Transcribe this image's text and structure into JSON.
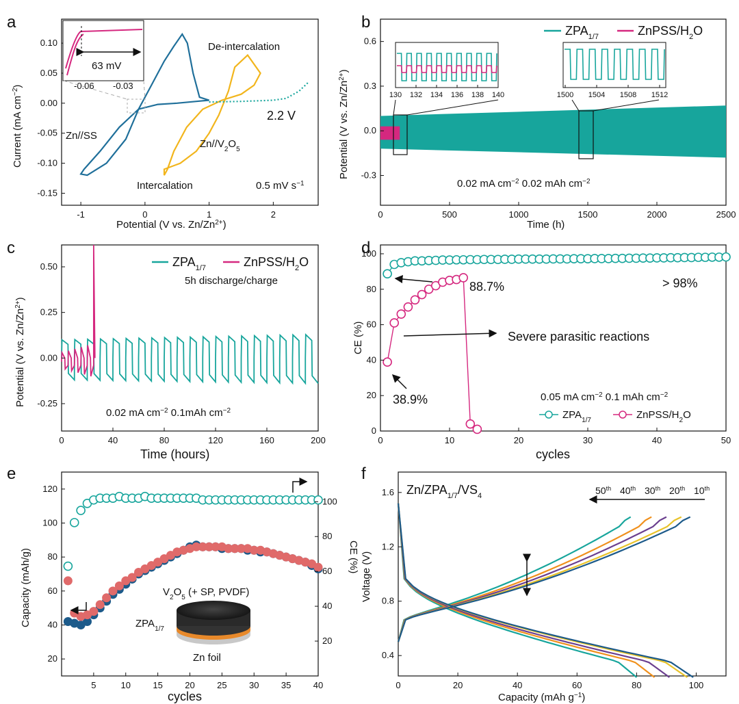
{
  "colors": {
    "teal": "#17a59c",
    "magenta": "#d5287f",
    "blue": "#1f6f9a",
    "gold": "#f2b51c",
    "salmon": "#e06a6a",
    "navy": "#1c5a8a",
    "orange": "#f0901c",
    "purple": "#6b3f8f",
    "yellow": "#e8c32a"
  },
  "panels": {
    "a": {
      "letter": "a",
      "xlabel": "Potential (V vs. Zn/Zn",
      "xlabel_sup": "2+",
      "xlabel_end": ")",
      "ylabel": "Current (mA cm",
      "ylabel_sup": "−2",
      "ylabel_end": ")",
      "xticks": [
        "-1",
        "0",
        "1",
        "2"
      ],
      "yticks": [
        "0.10",
        "0.05",
        "0.00",
        "-0.05",
        "-0.10",
        "-0.15"
      ],
      "labels": {
        "deint": "De-intercalation",
        "int": "Intercalation",
        "znss": "Zn//SS",
        "znv": "Zn//V",
        "znv_sub1": "2",
        "znv_mid": "O",
        "znv_sub2": "5",
        "v22": "2.2 V",
        "rate": "0.5 mV s",
        "rate_sup": "−1",
        "inset_mv": "63 mV",
        "inset_t1": "-0.06",
        "inset_t2": "-0.03"
      }
    },
    "b": {
      "letter": "b",
      "xlabel": "Time (h)",
      "ylabel": "Potential (V vs. Zn/Zn",
      "ylabel_sup": "2+",
      "ylabel_end": ")",
      "xticks": [
        "0",
        "500",
        "1000",
        "1500",
        "2000",
        "2500"
      ],
      "yticks": [
        "0.6",
        "0.3",
        "0.0",
        "-0.3"
      ],
      "legend": {
        "s1": "ZPA",
        "s1_sub": "1/7",
        "s2": "ZnPSS/H",
        "s2_sub": "2",
        "s2_end": "O"
      },
      "cond": "0.02 mA cm",
      "cond_sup1": "−2",
      "cond_mid": " 0.02 mAh cm",
      "cond_sup2": "−2",
      "inset1_ticks": [
        "130",
        "132",
        "134",
        "136",
        "138",
        "140"
      ],
      "inset2_ticks": [
        "1500",
        "1504",
        "1508",
        "1512"
      ]
    },
    "c": {
      "letter": "c",
      "xlabel": "Time (hours)",
      "ylabel": "Potential (V vs. Zn/Zn",
      "ylabel_sup": "2+",
      "ylabel_end": ")",
      "xticks": [
        "0",
        "40",
        "80",
        "120",
        "160",
        "200"
      ],
      "yticks": [
        "0.50",
        "0.25",
        "0.00",
        "-0.25"
      ],
      "legend": {
        "s1": "ZPA",
        "s1_sub": "1/7",
        "s2": "ZnPSS/H",
        "s2_sub": "2",
        "s2_end": "O",
        "note": "5h discharge/charge"
      },
      "cond": "0.02 mA cm",
      "cond_sup1": "−2",
      "cond_mid": "  0.1mAh cm",
      "cond_sup2": "−2"
    },
    "d": {
      "letter": "d",
      "xlabel": "cycles",
      "ylabel": "CE (%)",
      "xticks": [
        "0",
        "10",
        "20",
        "30",
        "40",
        "50"
      ],
      "yticks": [
        "100",
        "80",
        "60",
        "40",
        "20",
        "0"
      ],
      "ann1": "88.7%",
      "ann2": "> 98%",
      "ann3": "Severe parasitic reactions",
      "ann4": "38.9%",
      "cond": "0.05 mA cm",
      "cond_sup1": "−2",
      "cond_mid": " 0.1 mAh cm",
      "cond_sup2": "−2",
      "legend": {
        "s1": "ZPA",
        "s1_sub": "1/7",
        "s2": "ZnPSS/H",
        "s2_sub": "2",
        "s2_end": "O"
      }
    },
    "e": {
      "letter": "e",
      "xlabel": "cycles",
      "ylabel": "Capacity (mAh/g)",
      "y2label": "CE (%)",
      "xticks": [
        "5",
        "10",
        "15",
        "20",
        "25",
        "30",
        "35",
        "40"
      ],
      "yticks": [
        "120",
        "100",
        "80",
        "60",
        "40",
        "20"
      ],
      "y2ticks": [
        "100",
        "80",
        "60",
        "40",
        "20"
      ],
      "label_v": "V",
      "label_v_sub1": "2",
      "label_v_mid": "O",
      "label_v_sub2": "5",
      "label_v_end": " (+ SP, PVDF)",
      "label_zpa": "ZPA",
      "label_zpa_sub": "1/7",
      "label_zn": "Zn foil"
    },
    "f": {
      "letter": "f",
      "xlabel": "Capacity (mAh g",
      "xlabel_sup": "−1",
      "xlabel_end": ")",
      "ylabel": "Voltage (V)",
      "xticks": [
        "0",
        "20",
        "40",
        "60",
        "80",
        "100"
      ],
      "yticks": [
        "1.6",
        "1.2",
        "0.8",
        "0.4"
      ],
      "title": "Zn/ZPA",
      "title_sub": "1/7",
      "title_end": "/VS",
      "title_sub2": "4",
      "cycles": [
        {
          "n": "50",
          "s": "th"
        },
        {
          "n": "40",
          "s": "th"
        },
        {
          "n": "30",
          "s": "th"
        },
        {
          "n": "20",
          "s": "th"
        },
        {
          "n": "10",
          "s": "th"
        }
      ]
    }
  },
  "chart_data": [
    {
      "panel": "a",
      "type": "line",
      "xlabel": "Potential (V vs. Zn/Zn2+)",
      "ylabel": "Current (mA cm-2)",
      "xlim": [
        -1.3,
        2.7
      ],
      "ylim": [
        -0.17,
        0.14
      ],
      "series": [
        {
          "name": "Zn//SS",
          "color": "#1f6f9a",
          "x": [
            -0.9,
            -0.6,
            -0.3,
            -0.1,
            0.1,
            0.3,
            0.45,
            0.58,
            0.66,
            0.75,
            0.85,
            1.0,
            0.8,
            0.5,
            0.2,
            -0.1,
            -0.4,
            -0.7,
            -0.95,
            -1.0,
            -0.9
          ],
          "y": [
            -0.12,
            -0.1,
            -0.06,
            -0.01,
            0.03,
            0.07,
            0.095,
            0.115,
            0.1,
            0.05,
            0.01,
            0.005,
            0.003,
            0.0,
            -0.002,
            -0.01,
            -0.04,
            -0.08,
            -0.11,
            -0.118,
            -0.12
          ]
        },
        {
          "name": "Zn//V2O5",
          "color": "#f2b51c",
          "x": [
            0.3,
            0.55,
            0.8,
            1.0,
            1.15,
            1.3,
            1.4,
            1.6,
            1.8,
            1.7,
            1.5,
            1.2,
            0.9,
            0.65,
            0.45,
            0.35,
            0.3,
            0.3
          ],
          "y": [
            -0.11,
            -0.1,
            -0.08,
            -0.05,
            -0.02,
            0.02,
            0.06,
            0.08,
            0.05,
            0.03,
            0.015,
            0.005,
            -0.01,
            -0.04,
            -0.08,
            -0.11,
            -0.12,
            -0.11
          ]
        },
        {
          "name": "oxidation",
          "color": "#17a59c",
          "x": [
            1.0,
            1.5,
            2.0,
            2.2,
            2.4,
            2.55
          ],
          "y": [
            0.002,
            0.003,
            0.005,
            0.008,
            0.02,
            0.035
          ]
        }
      ]
    },
    {
      "panel": "b",
      "type": "line",
      "xlabel": "Time (h)",
      "ylabel": "Potential (V vs. Zn/Zn2+)",
      "xlim": [
        0,
        2500
      ],
      "ylim": [
        -0.5,
        0.75
      ],
      "series": [
        {
          "name": "ZPA1/7",
          "envelope_upper_start": 0.1,
          "envelope_upper_end": 0.17,
          "envelope_lower_start": -0.12,
          "envelope_lower_end": -0.18
        },
        {
          "name": "ZnPSS/H2O",
          "x_end": 140,
          "upper": 0.03,
          "lower": -0.06
        }
      ]
    },
    {
      "panel": "c",
      "type": "line",
      "xlabel": "Time (hours)",
      "ylabel": "Potential (V vs. Zn/Zn2+)",
      "xlim": [
        0,
        200
      ],
      "ylim": [
        -0.4,
        0.62
      ],
      "series": [
        {
          "name": "ZPA1/7",
          "period_h": 10,
          "upper_start": 0.1,
          "upper_end": 0.13,
          "lower_start": -0.12,
          "lower_end": -0.14
        },
        {
          "name": "ZnPSS/H2O",
          "x_end": 26,
          "failure_x": 25,
          "failure_y": 0.62
        }
      ]
    },
    {
      "panel": "d",
      "type": "scatter",
      "xlabel": "cycles",
      "ylabel": "CE (%)",
      "xlim": [
        0,
        50
      ],
      "ylim": [
        0,
        105
      ],
      "series": [
        {
          "name": "ZPA1/7",
          "x": [
            1,
            2,
            3,
            4,
            5,
            6,
            7,
            8,
            9,
            10,
            11,
            12,
            13,
            14,
            15,
            16,
            17,
            18,
            19,
            20,
            21,
            22,
            23,
            24,
            25,
            26,
            27,
            28,
            29,
            30,
            31,
            32,
            33,
            34,
            35,
            36,
            37,
            38,
            39,
            40,
            41,
            42,
            43,
            44,
            45,
            46,
            47,
            48,
            49,
            50
          ],
          "y": [
            88.7,
            94,
            95,
            95.5,
            96,
            96,
            96.2,
            96.3,
            96.5,
            96.5,
            96.6,
            96.6,
            96.7,
            96.7,
            96.8,
            96.8,
            96.8,
            96.9,
            96.9,
            97,
            97,
            97,
            97,
            97,
            97.1,
            97.1,
            97.1,
            97.2,
            97.2,
            97.2,
            97.3,
            97.3,
            97.3,
            97.4,
            97.4,
            97.5,
            97.5,
            97.6,
            97.6,
            97.7,
            97.7,
            97.8,
            97.8,
            97.9,
            97.9,
            98,
            98,
            98.1,
            98.1,
            98.2
          ]
        },
        {
          "name": "ZnPSS/H2O",
          "x": [
            1,
            2,
            3,
            4,
            5,
            6,
            7,
            8,
            9,
            10,
            11,
            12,
            13,
            14
          ],
          "y": [
            38.9,
            61,
            66,
            70,
            74,
            77,
            80,
            82,
            84,
            85,
            85.5,
            86.5,
            4,
            1
          ]
        }
      ],
      "annotations": [
        "88.7%",
        "> 98%",
        "Severe parasitic reactions",
        "38.9%"
      ]
    },
    {
      "panel": "e",
      "type": "scatter",
      "xlabel": "cycles",
      "ylabel": "Capacity (mAh/g)",
      "y2label": "CE (%)",
      "xlim": [
        0,
        40
      ],
      "ylim": [
        10,
        130
      ],
      "y2lim": [
        0,
        117
      ],
      "series": [
        {
          "name": "CE",
          "axis": "right",
          "x": [
            1,
            2,
            3,
            4,
            5,
            6,
            7,
            8,
            9,
            10,
            11,
            12,
            13,
            14,
            15,
            16,
            17,
            18,
            19,
            20,
            21,
            22,
            23,
            24,
            25,
            26,
            27,
            28,
            29,
            30,
            31,
            32,
            33,
            34,
            35,
            36,
            37,
            38,
            39,
            40
          ],
          "y": [
            63,
            88,
            95,
            99,
            101,
            102,
            102,
            102,
            103,
            102,
            102,
            102,
            103,
            102,
            102,
            102,
            102,
            102,
            102,
            102,
            102,
            101,
            101,
            101,
            101,
            101,
            101,
            101,
            101,
            101,
            101,
            101,
            101,
            101,
            101,
            101,
            101,
            101,
            101,
            101
          ]
        },
        {
          "name": "capacity (blue)",
          "axis": "left",
          "x": [
            1,
            2,
            3,
            4,
            5,
            6,
            7,
            8,
            9,
            10,
            11,
            12,
            13,
            14,
            15,
            16,
            17,
            18,
            19,
            20,
            21,
            22,
            23,
            24,
            25,
            26,
            27,
            28,
            29,
            30,
            31,
            32,
            33,
            34,
            35,
            36,
            37,
            38,
            39,
            40
          ],
          "y": [
            42,
            41,
            40,
            42,
            46,
            50,
            54,
            58,
            61,
            64,
            67,
            70,
            72,
            74,
            76,
            78,
            80,
            82,
            84,
            86,
            87,
            86,
            86,
            86,
            85,
            85,
            85,
            85,
            84,
            84,
            83,
            83,
            82,
            81,
            80,
            79,
            78,
            77,
            75,
            73
          ]
        },
        {
          "name": "capacity (red)",
          "axis": "left",
          "x": [
            1,
            2,
            3,
            4,
            5,
            6,
            7,
            8,
            9,
            10,
            11,
            12,
            13,
            14,
            15,
            16,
            17,
            18,
            19,
            20,
            21,
            22,
            23,
            24,
            25,
            26,
            27,
            28,
            29,
            30,
            31,
            32,
            33,
            34,
            35,
            36,
            37,
            38,
            39,
            40
          ],
          "y": [
            66,
            47,
            45,
            46,
            48,
            52,
            56,
            60,
            63,
            66,
            68,
            71,
            73,
            75,
            77,
            79,
            81,
            83,
            84,
            85,
            86,
            86,
            86,
            86,
            86,
            85,
            85,
            85,
            85,
            84,
            84,
            83,
            82,
            81,
            80,
            79,
            78,
            77,
            76,
            74
          ]
        }
      ]
    },
    {
      "panel": "f",
      "type": "line",
      "xlabel": "Capacity (mAh g-1)",
      "ylabel": "Voltage (V)",
      "xlim": [
        0,
        110
      ],
      "ylim": [
        0.25,
        1.75
      ],
      "series": [
        {
          "name": "10th",
          "color": "#1c5a8a",
          "discharge_end": 99,
          "charge_end": 98
        },
        {
          "name": "20th",
          "color": "#e8c32a",
          "discharge_end": 97,
          "charge_end": 95
        },
        {
          "name": "30th",
          "color": "#6b3f8f",
          "discharge_end": 91,
          "charge_end": 90
        },
        {
          "name": "40th",
          "color": "#f0901c",
          "discharge_end": 86,
          "charge_end": 85
        },
        {
          "name": "50th",
          "color": "#17a59c",
          "discharge_end": 80,
          "charge_end": 78
        }
      ]
    }
  ]
}
